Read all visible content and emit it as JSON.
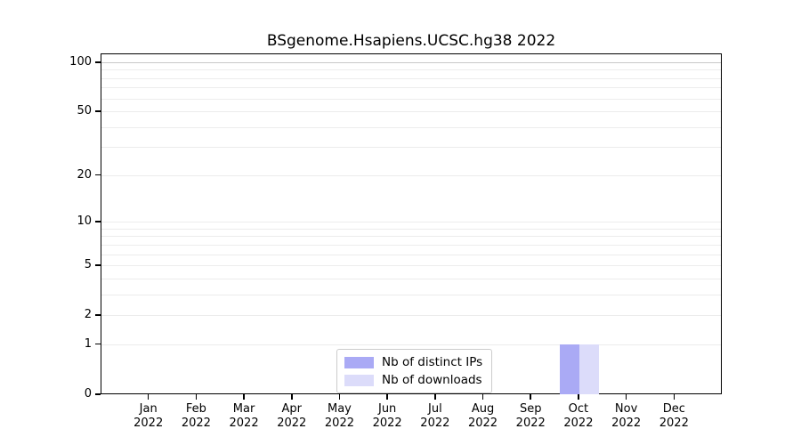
{
  "chart_data": {
    "type": "bar",
    "title": "BSgenome.Hsapiens.UCSC.hg38 2022",
    "categories": [
      "Jan",
      "Feb",
      "Mar",
      "Apr",
      "May",
      "Jun",
      "Jul",
      "Aug",
      "Sep",
      "Oct",
      "Nov",
      "Dec"
    ],
    "x_year": "2022",
    "series": [
      {
        "name": "Nb of distinct IPs",
        "color": "#aaaaf5",
        "values": [
          0,
          0,
          0,
          0,
          0,
          0,
          0,
          0,
          0,
          1,
          0,
          0
        ]
      },
      {
        "name": "Nb of downloads",
        "color": "#dcdcfa",
        "values": [
          0,
          0,
          0,
          0,
          0,
          0,
          0,
          0,
          0,
          1,
          0,
          0
        ]
      }
    ],
    "yscale": "log1p",
    "ylim": [
      0,
      113
    ],
    "yticks": [
      0,
      1,
      2,
      5,
      10,
      20,
      50,
      100
    ],
    "grid": {
      "values": [
        1,
        2,
        3,
        4,
        5,
        6,
        7,
        8,
        9,
        10,
        20,
        30,
        40,
        50,
        60,
        70,
        80,
        90,
        100
      ],
      "color": "#ececec",
      "emphasis_value": 100,
      "emphasis_color": "#c8c8c8"
    },
    "legend_position": "bottom-center"
  },
  "colors": {
    "axis": "#000000",
    "background": "#ffffff",
    "text": "#000000"
  }
}
